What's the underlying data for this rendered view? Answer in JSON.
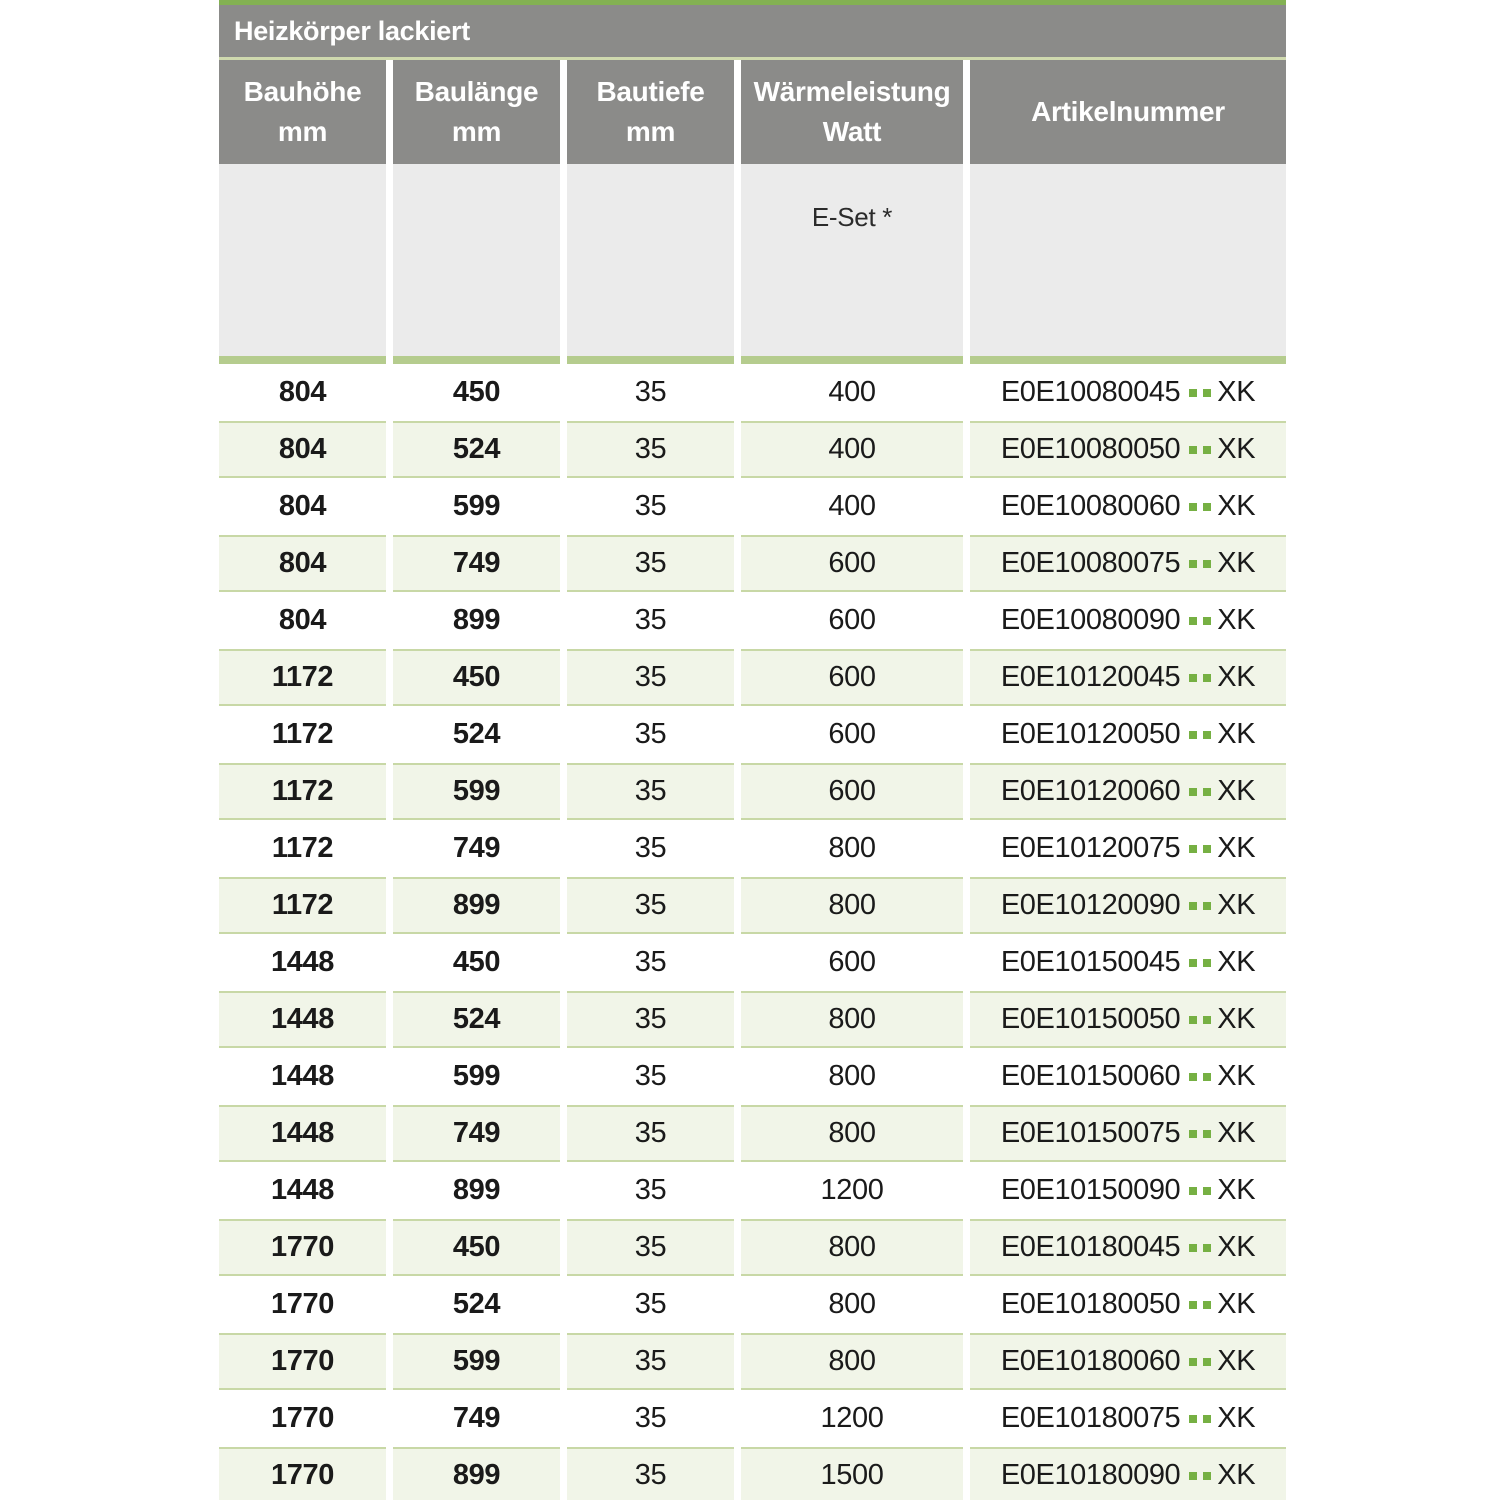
{
  "table": {
    "title": "Heizkörper lackiert",
    "columns": [
      {
        "line1": "Bauhöhe",
        "line2": "mm"
      },
      {
        "line1": "Baulänge",
        "line2": "mm"
      },
      {
        "line1": "Bautiefe",
        "line2": "mm"
      },
      {
        "line1": "Wärmeleistung",
        "line2": "Watt"
      },
      {
        "line1": "Artikelnummer",
        "line2": ""
      }
    ],
    "subheader": {
      "e_set_label": "E-Set *"
    },
    "artikel_placeholder_dots": 2,
    "rows": [
      {
        "bauhoehe": "804",
        "baulaenge": "450",
        "bautiefe": "35",
        "watt": "400",
        "artikel": "E0E10080045",
        "suffix": "XK"
      },
      {
        "bauhoehe": "804",
        "baulaenge": "524",
        "bautiefe": "35",
        "watt": "400",
        "artikel": "E0E10080050",
        "suffix": "XK"
      },
      {
        "bauhoehe": "804",
        "baulaenge": "599",
        "bautiefe": "35",
        "watt": "400",
        "artikel": "E0E10080060",
        "suffix": "XK"
      },
      {
        "bauhoehe": "804",
        "baulaenge": "749",
        "bautiefe": "35",
        "watt": "600",
        "artikel": "E0E10080075",
        "suffix": "XK"
      },
      {
        "bauhoehe": "804",
        "baulaenge": "899",
        "bautiefe": "35",
        "watt": "600",
        "artikel": "E0E10080090",
        "suffix": "XK"
      },
      {
        "bauhoehe": "1172",
        "baulaenge": "450",
        "bautiefe": "35",
        "watt": "600",
        "artikel": "E0E10120045",
        "suffix": "XK"
      },
      {
        "bauhoehe": "1172",
        "baulaenge": "524",
        "bautiefe": "35",
        "watt": "600",
        "artikel": "E0E10120050",
        "suffix": "XK"
      },
      {
        "bauhoehe": "1172",
        "baulaenge": "599",
        "bautiefe": "35",
        "watt": "600",
        "artikel": "E0E10120060",
        "suffix": "XK"
      },
      {
        "bauhoehe": "1172",
        "baulaenge": "749",
        "bautiefe": "35",
        "watt": "800",
        "artikel": "E0E10120075",
        "suffix": "XK"
      },
      {
        "bauhoehe": "1172",
        "baulaenge": "899",
        "bautiefe": "35",
        "watt": "800",
        "artikel": "E0E10120090",
        "suffix": "XK"
      },
      {
        "bauhoehe": "1448",
        "baulaenge": "450",
        "bautiefe": "35",
        "watt": "600",
        "artikel": "E0E10150045",
        "suffix": "XK"
      },
      {
        "bauhoehe": "1448",
        "baulaenge": "524",
        "bautiefe": "35",
        "watt": "800",
        "artikel": "E0E10150050",
        "suffix": "XK"
      },
      {
        "bauhoehe": "1448",
        "baulaenge": "599",
        "bautiefe": "35",
        "watt": "800",
        "artikel": "E0E10150060",
        "suffix": "XK"
      },
      {
        "bauhoehe": "1448",
        "baulaenge": "749",
        "bautiefe": "35",
        "watt": "800",
        "artikel": "E0E10150075",
        "suffix": "XK"
      },
      {
        "bauhoehe": "1448",
        "baulaenge": "899",
        "bautiefe": "35",
        "watt": "1200",
        "artikel": "E0E10150090",
        "suffix": "XK"
      },
      {
        "bauhoehe": "1770",
        "baulaenge": "450",
        "bautiefe": "35",
        "watt": "800",
        "artikel": "E0E10180045",
        "suffix": "XK"
      },
      {
        "bauhoehe": "1770",
        "baulaenge": "524",
        "bautiefe": "35",
        "watt": "800",
        "artikel": "E0E10180050",
        "suffix": "XK"
      },
      {
        "bauhoehe": "1770",
        "baulaenge": "599",
        "bautiefe": "35",
        "watt": "800",
        "artikel": "E0E10180060",
        "suffix": "XK"
      },
      {
        "bauhoehe": "1770",
        "baulaenge": "749",
        "bautiefe": "35",
        "watt": "1200",
        "artikel": "E0E10180075",
        "suffix": "XK"
      },
      {
        "bauhoehe": "1770",
        "baulaenge": "899",
        "bautiefe": "35",
        "watt": "1500",
        "artikel": "E0E10180090",
        "suffix": "XK"
      }
    ]
  },
  "colors": {
    "accent_green": "#83b152",
    "header_gray": "#8b8b89",
    "subheader_gray": "#ebebeb",
    "divider_green": "#b5cc8e",
    "row_tint_green": "#f1f5e8",
    "row_border_green": "#c8d8a6",
    "dot_green": "#76b043",
    "header_text": "#ffffff",
    "body_text": "#1a1a1a"
  }
}
